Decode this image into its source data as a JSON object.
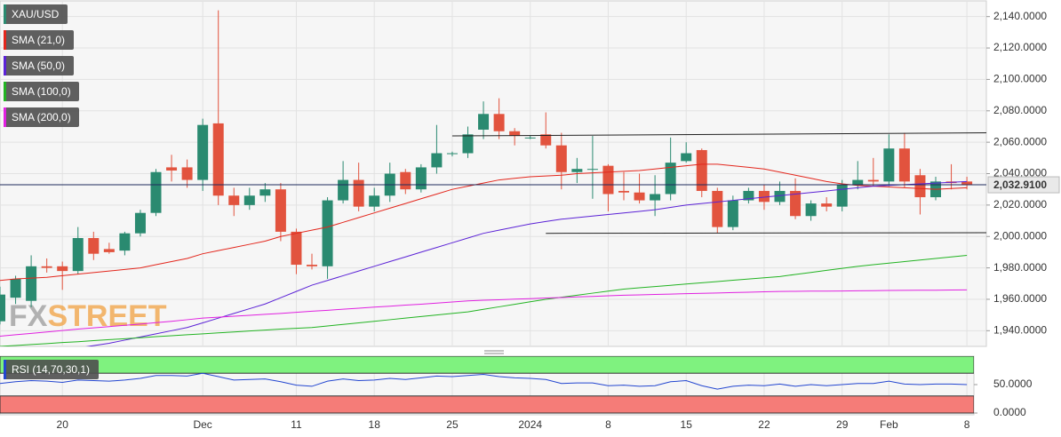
{
  "chart_data": [
    {
      "type": "candlestick",
      "name": "XAU/USD",
      "categories": [
        null,
        null,
        null,
        null,
        "20",
        null,
        null,
        null,
        null,
        null,
        null,
        null,
        null,
        "Dec",
        null,
        null,
        null,
        null,
        null,
        "11",
        null,
        null,
        null,
        null,
        "18",
        null,
        null,
        null,
        null,
        "25",
        null,
        null,
        null,
        null,
        "2024",
        null,
        null,
        null,
        null,
        "8",
        null,
        null,
        null,
        null,
        "15",
        null,
        null,
        null,
        null,
        "22",
        null,
        null,
        null,
        null,
        "29",
        null,
        null,
        "Feb",
        null,
        null,
        null,
        null,
        "8"
      ],
      "open": [
        1946,
        1961,
        1959,
        1981,
        1981,
        1978,
        1999,
        1992,
        1991,
        2002,
        2015,
        2044,
        2044,
        2036,
        2072,
        2026,
        2020,
        2026,
        2030,
        2003,
        1982,
        1981,
        2023,
        2036,
        2019,
        2026,
        2041,
        2030,
        2044,
        2053,
        2053,
        2068,
        2078,
        2067,
        2063,
        2065,
        2058,
        2041,
        2043,
        2045,
        2029,
        2028,
        2023,
        2027,
        2048,
        2055,
        2029,
        2006,
        2023,
        2029,
        2022,
        2029,
        2013,
        2021,
        2019,
        2033,
        2036,
        2035,
        2056,
        2039,
        2025,
        2035,
        2035
      ],
      "high": [
        1968,
        1975,
        1988,
        1986,
        1984,
        2006,
        2003,
        1996,
        2003,
        2017,
        2043,
        2052,
        2049,
        2075,
        2144,
        2031,
        2031,
        2034,
        2034,
        2005,
        1989,
        2025,
        2048,
        2047,
        2031,
        2047,
        2043,
        2046,
        2071,
        2054,
        2070,
        2086,
        2088,
        2069,
        2064,
        2079,
        2066,
        2050,
        2064,
        2046,
        2041,
        2040,
        2039,
        2063,
        2060,
        2056,
        2031,
        2026,
        2031,
        2033,
        2035,
        2037,
        2023,
        2025,
        2036,
        2048,
        2050,
        2065,
        2066,
        2043,
        2038,
        2046,
        2038
      ],
      "low": [
        1944,
        1957,
        1955,
        1977,
        1966,
        1976,
        1985,
        1989,
        1988,
        2000,
        2013,
        2035,
        2031,
        2029,
        2020,
        2013,
        2017,
        2022,
        1997,
        1976,
        1979,
        1973,
        2021,
        2016,
        2016,
        2022,
        2027,
        2028,
        2040,
        2051,
        2050,
        2062,
        2062,
        2058,
        2062,
        2056,
        2030,
        2034,
        2024,
        2016,
        2023,
        2021,
        2013,
        2023,
        2047,
        2025,
        2002,
        2004,
        2021,
        2017,
        2020,
        2011,
        2010,
        2016,
        2016,
        2030,
        2032,
        2032,
        2031,
        2014,
        2023,
        2030,
        2030
      ],
      "close": [
        1963,
        1973,
        1981,
        1980,
        1978,
        1999,
        1989,
        1990,
        2002,
        2015,
        2041,
        2042,
        2036,
        2071,
        2026,
        2020,
        2026,
        2030,
        2003,
        1982,
        1981,
        2023,
        2036,
        2019,
        2026,
        2040,
        2030,
        2044,
        2053,
        2053,
        2065,
        2078,
        2067,
        2064,
        2063,
        2058,
        2041,
        2043,
        2043,
        2027,
        2028,
        2023,
        2027,
        2047,
        2053,
        2029,
        2006,
        2023,
        2029,
        2022,
        2029,
        2013,
        2021,
        2019,
        2033,
        2036,
        2035,
        2056,
        2035,
        2025,
        2035,
        2034,
        2033
      ],
      "up_color": "#2a8a70",
      "down_color": "#e2533e",
      "legend_color": "#2a8a70",
      "series": [
        {
          "name": "SMA (21,0)",
          "color": "#e3261c",
          "values": [
            1972,
            1973,
            1973.5,
            1974,
            1975,
            1976,
            1977,
            1978,
            1979,
            1980,
            1982,
            1984,
            1986,
            1989,
            1991,
            1993,
            1995,
            1997,
            2000,
            2002,
            2004,
            2006,
            2009,
            2012,
            2015,
            2018,
            2021,
            2024,
            2027,
            2030,
            2032,
            2034,
            2036,
            2037,
            2038,
            2038.5,
            2039,
            2040,
            2040.5,
            2041,
            2041.5,
            2042,
            2043,
            2044,
            2045,
            2046,
            2046,
            2045,
            2044,
            2043,
            2041,
            2039,
            2037,
            2035,
            2033.5,
            2032.5,
            2032,
            2031.5,
            2031,
            2030.5,
            2030,
            2030.5,
            2031
          ]
        },
        {
          "name": "SMA (50,0)",
          "color": "#5b22d6",
          "values": [
            1922,
            1923,
            1924.5,
            1926,
            1927.5,
            1929,
            1930.5,
            1932,
            1934,
            1936,
            1938,
            1940,
            1942,
            1945,
            1948,
            1951,
            1954,
            1957,
            1961,
            1965,
            1969,
            1972,
            1975,
            1978,
            1981,
            1984,
            1987,
            1990,
            1993,
            1996,
            1999,
            2002,
            2004,
            2006,
            2008,
            2009.5,
            2011,
            2012,
            2013,
            2014,
            2015,
            2016,
            2017,
            2018.5,
            2020,
            2021,
            2022,
            2023,
            2024,
            2025,
            2026,
            2027,
            2028,
            2029,
            2030,
            2031,
            2032,
            2032.5,
            2033,
            2033.5,
            2034,
            2034.5,
            2035
          ]
        },
        {
          "name": "SMA (100,0)",
          "color": "#22b322",
          "values": [
            1930,
            1930.6,
            1931.2,
            1931.8,
            1932.5,
            1933,
            1933.7,
            1934.3,
            1934.9,
            1935.5,
            1936.2,
            1936.8,
            1937.4,
            1938,
            1938.6,
            1939.2,
            1939.8,
            1940.4,
            1941,
            1941.5,
            1942,
            1943,
            1944,
            1945,
            1946,
            1947,
            1948,
            1949,
            1950,
            1951,
            1952,
            1953.6,
            1955.2,
            1956.8,
            1958.4,
            1960,
            1961.3,
            1962.6,
            1963.9,
            1965.2,
            1966.5,
            1967.3,
            1968.1,
            1968.9,
            1969.7,
            1970.5,
            1971.3,
            1972.1,
            1972.9,
            1973.7,
            1974.5,
            1975.8,
            1977.1,
            1978.4,
            1979.7,
            1981,
            1982,
            1983,
            1984,
            1985,
            1986,
            1987,
            1988
          ]
        },
        {
          "name": "SMA (200,0)",
          "color": "#e020e0",
          "values": [
            1936.5,
            1937.4,
            1938.3,
            1939.2,
            1940.1,
            1941,
            1941.8,
            1942.6,
            1943.4,
            1944.2,
            1945.1,
            1946,
            1947,
            1948,
            1948.6,
            1949.2,
            1949.8,
            1950.4,
            1951,
            1951.7,
            1952.4,
            1953,
            1953.7,
            1954.3,
            1955,
            1955.6,
            1956.3,
            1956.9,
            1957.6,
            1958.3,
            1959,
            1959.4,
            1959.7,
            1960.1,
            1960.4,
            1960.8,
            1961.1,
            1961.5,
            1961.8,
            1962.2,
            1962.6,
            1962.8,
            1963.1,
            1963.3,
            1963.6,
            1963.8,
            1964,
            1964.3,
            1964.5,
            1964.8,
            1965,
            1965.1,
            1965.2,
            1965.2,
            1965.3,
            1965.4,
            1965.5,
            1965.6,
            1965.7,
            1965.8,
            1965.8,
            1965.9,
            1966
          ]
        }
      ],
      "trendlines": [
        {
          "x": [
            29,
            63.5
          ],
          "y": [
            2064,
            2066
          ]
        },
        {
          "x": [
            35,
            63.5
          ],
          "y": [
            2002,
            2002.4
          ]
        }
      ],
      "last_price": {
        "value": 2032.91,
        "label": "2,032.9100"
      },
      "ylim": [
        1930,
        2150
      ],
      "yticks": [
        {
          "value": 1940,
          "label": "1,940.0000"
        },
        {
          "value": 1960,
          "label": "1,960.0000"
        },
        {
          "value": 1980,
          "label": "1,980.0000"
        },
        {
          "value": 2000,
          "label": "2,000.0000"
        },
        {
          "value": 2020,
          "label": "2,020.0000"
        },
        {
          "value": 2040,
          "label": "2,040.0000"
        },
        {
          "value": 2060,
          "label": "2,060.0000"
        },
        {
          "value": 2080,
          "label": "2,080.0000"
        },
        {
          "value": 2100,
          "label": "2,100.0000"
        },
        {
          "value": 2120,
          "label": "2,120.0000"
        },
        {
          "value": 2140,
          "label": "2,140.0000"
        }
      ],
      "grid": true,
      "watermark": [
        "FX",
        "STREET"
      ]
    },
    {
      "type": "line",
      "name": "RSI (14,70,30,1)",
      "series": [
        {
          "color": "#2346d0",
          "values": [
            52,
            55,
            57,
            56,
            54,
            58,
            57,
            56,
            58,
            61,
            66,
            66,
            65,
            70,
            64,
            58,
            59,
            60,
            55,
            49,
            47,
            56,
            60,
            57,
            58,
            61,
            59,
            62,
            65,
            64,
            66,
            68,
            64,
            62,
            61,
            59,
            52,
            53,
            53,
            48,
            49,
            47,
            48,
            55,
            57,
            48,
            42,
            47,
            49,
            48,
            51,
            47,
            50,
            48,
            50,
            52,
            52,
            56,
            51,
            50,
            51,
            51,
            50
          ]
        }
      ],
      "overbought": 70,
      "oversold": 30,
      "overbought_color": "#7ff27f",
      "oversold_color": "#f57c78",
      "ylim": [
        0,
        100
      ],
      "yticks": [
        {
          "value": 50,
          "label": "50.0000"
        },
        {
          "value": 0,
          "label": "0.0000"
        }
      ]
    }
  ]
}
